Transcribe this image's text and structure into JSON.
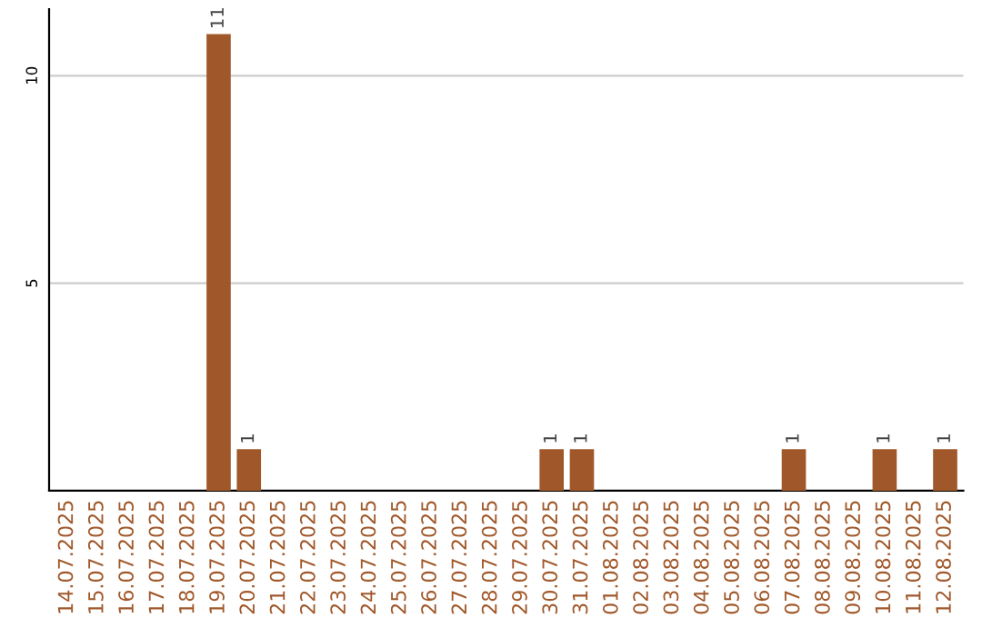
{
  "chart_data": {
    "type": "bar",
    "categories": [
      "14.07.2025",
      "15.07.2025",
      "16.07.2025",
      "17.07.2025",
      "18.07.2025",
      "19.07.2025",
      "20.07.2025",
      "21.07.2025",
      "22.07.2025",
      "23.07.2025",
      "24.07.2025",
      "25.07.2025",
      "26.07.2025",
      "27.07.2025",
      "28.07.2025",
      "29.07.2025",
      "30.07.2025",
      "31.07.2025",
      "01.08.2025",
      "02.08.2025",
      "03.08.2025",
      "04.08.2025",
      "05.08.2025",
      "06.08.2025",
      "07.08.2025",
      "08.08.2025",
      "09.08.2025",
      "10.08.2025",
      "11.08.2025",
      "12.08.2025"
    ],
    "values": [
      0,
      0,
      0,
      0,
      0,
      11,
      1,
      0,
      0,
      0,
      0,
      0,
      0,
      0,
      0,
      0,
      1,
      1,
      0,
      0,
      0,
      0,
      0,
      0,
      1,
      0,
      0,
      1,
      0,
      1
    ],
    "value_labels": [
      null,
      null,
      null,
      null,
      null,
      "11",
      "1",
      null,
      null,
      null,
      null,
      null,
      null,
      null,
      null,
      null,
      "1",
      "1",
      null,
      null,
      null,
      null,
      null,
      null,
      "1",
      null,
      null,
      "1",
      null,
      "1"
    ],
    "color": "#a0582a",
    "ylim": [
      0,
      11.6
    ],
    "yticks": [
      5,
      10
    ],
    "grid": "y"
  }
}
